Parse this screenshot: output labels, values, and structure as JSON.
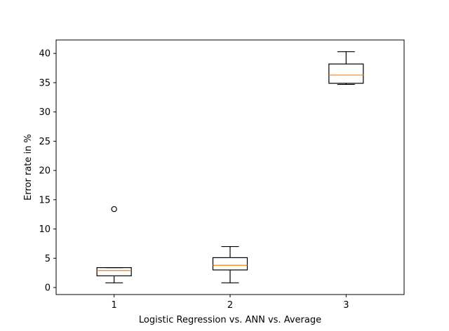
{
  "chart_data": {
    "type": "boxplot",
    "xlabel": "Logistic Regression   vs.   ANN   vs.   Average",
    "ylabel": "Error rate in %",
    "xlim": [
      0.5,
      3.5
    ],
    "ylim": [
      -1.2,
      42.3
    ],
    "x_ticks": [
      "1",
      "2",
      "3"
    ],
    "y_ticks": [
      0,
      5,
      10,
      15,
      20,
      25,
      30,
      35,
      40
    ],
    "grid": false,
    "boxes": [
      {
        "position": 1,
        "whisker_low": 0.8,
        "q1": 2.0,
        "median": 2.9,
        "q3": 3.4,
        "whisker_high": 3.4,
        "outliers": [
          13.4
        ]
      },
      {
        "position": 2,
        "whisker_low": 0.8,
        "q1": 3.0,
        "median": 3.8,
        "q3": 5.1,
        "whisker_high": 7.0,
        "outliers": []
      },
      {
        "position": 3,
        "whisker_low": 34.7,
        "q1": 34.9,
        "median": 36.3,
        "q3": 38.2,
        "whisker_high": 40.3,
        "outliers": []
      }
    ],
    "colors": {
      "box": "#000000",
      "median": "#ff7f0e",
      "axes": "#000000"
    }
  }
}
